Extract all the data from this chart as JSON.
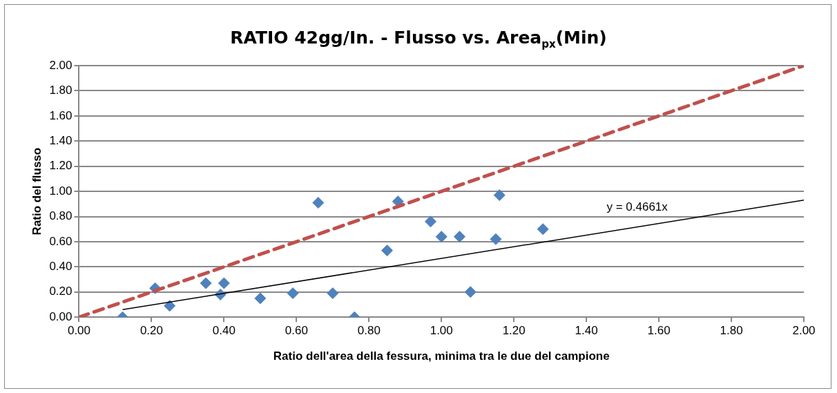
{
  "chart_data": {
    "type": "scatter",
    "title": "RATIO 42gg/In. - Flusso vs. Area$_{px}$(Min)",
    "xlabel": "Ratio dell'area della fessura, minima tra le due del campione",
    "ylabel": "Ratio del flusso",
    "series": [
      {
        "color": "#4f81bd",
        "marker": "diamond",
        "x": [
          0.12,
          0.21,
          0.25,
          0.35,
          0.39,
          0.4,
          0.5,
          0.59,
          0.66,
          0.7,
          0.76,
          0.85,
          0.88,
          0.97,
          1.0,
          1.05,
          1.08,
          1.16,
          1.15,
          1.28
        ],
        "values": [
          0.0,
          0.23,
          0.09,
          0.27,
          0.18,
          0.27,
          0.15,
          0.19,
          0.91,
          0.19,
          0.0,
          0.53,
          0.92,
          0.76,
          0.64,
          0.64,
          0.2,
          0.97,
          0.62,
          0.7
        ]
      },
      {
        "type": "line",
        "color": "#000000",
        "marker": "none",
        "line_style": "solid",
        "x": [
          0.12,
          2.0
        ],
        "values": [
          0.06,
          0.93
        ]
      },
      {
        "type": "line",
        "color": "#c0504d",
        "marker": "none",
        "line_style": "dashed",
        "x": [
          0.0,
          2.0
        ],
        "values": [
          0.0,
          2.0
        ]
      }
    ],
    "annotations": [
      "y = 0.4661x"
    ],
    "xlim": [
      0,
      2
    ],
    "ylim": [
      0,
      2
    ],
    "xticks": [
      {
        "value": 0,
        "label": "0.00"
      },
      {
        "value": 0.2,
        "label": "0.20"
      },
      {
        "value": 0.4,
        "label": "0.40"
      },
      {
        "value": 0.6,
        "label": "0.60"
      },
      {
        "value": 0.8,
        "label": "0.80"
      },
      {
        "value": 1,
        "label": "1.00"
      },
      {
        "value": 1.2,
        "label": "1.20"
      },
      {
        "value": 1.4,
        "label": "1.40"
      },
      {
        "value": 1.6,
        "label": "1.60"
      },
      {
        "value": 1.8,
        "label": "1.80"
      },
      {
        "value": 2,
        "label": "2.00"
      }
    ],
    "yticks": [
      {
        "value": 0,
        "label": "0.00"
      },
      {
        "value": 0.2,
        "label": "0.20"
      },
      {
        "value": 0.4,
        "label": "0.40"
      },
      {
        "value": 0.6,
        "label": "0.60"
      },
      {
        "value": 0.8,
        "label": "0.80"
      },
      {
        "value": 1,
        "label": "1.00"
      },
      {
        "value": 1.2,
        "label": "1.20"
      },
      {
        "value": 1.4,
        "label": "1.40"
      },
      {
        "value": 1.6,
        "label": "1.60"
      },
      {
        "value": 1.8,
        "label": "1.80"
      },
      {
        "value": 2,
        "label": "2.00"
      }
    ],
    "grid": "y",
    "legend": false
  }
}
